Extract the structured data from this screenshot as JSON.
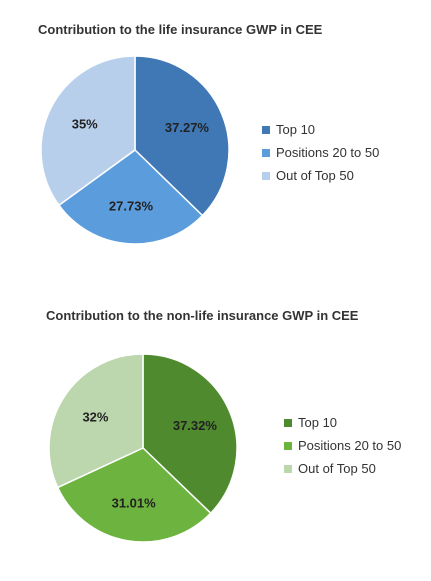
{
  "chart_data": [
    {
      "type": "pie",
      "title": "Contribution to the life insurance GWP in CEE",
      "categories": [
        "Top 10",
        "Positions 20 to 50",
        "Out of Top 50"
      ],
      "values": [
        37.27,
        27.73,
        35
      ],
      "labels": [
        "37.27%",
        "27.73%",
        "35%"
      ],
      "colors": [
        "#3f78b5",
        "#5b9ddc",
        "#b7cfeb"
      ],
      "legend_position": "right"
    },
    {
      "type": "pie",
      "title": "Contribution to the non-life insurance GWP in CEE",
      "categories": [
        "Top 10",
        "Positions 20 to 50",
        "Out of Top 50"
      ],
      "values": [
        37.32,
        31.01,
        32
      ],
      "labels": [
        "37.32%",
        "31.01%",
        "32%"
      ],
      "colors": [
        "#4f8b2e",
        "#6db33f",
        "#bcd6ae"
      ],
      "legend_position": "right"
    }
  ]
}
